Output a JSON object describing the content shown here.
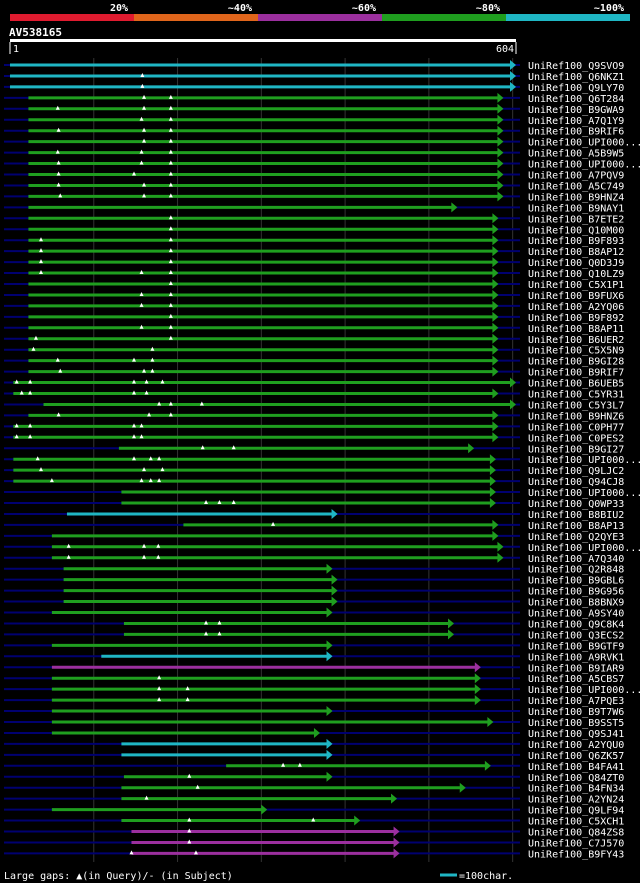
{
  "scale": {
    "labels": [
      "20%",
      "~40%",
      "~60%",
      "~80%",
      "~100%"
    ],
    "colors": [
      "#e01b2f",
      "#e0651b",
      "#9b2f9e",
      "#1f9e1f",
      "#1fb6c4"
    ]
  },
  "query": {
    "name": "AV538165",
    "start": "1",
    "end": "604",
    "length": 604
  },
  "legend": {
    "gaps": "Large gaps: ▲(in Query)/- (in Subject)",
    "unit": "=100char."
  },
  "colors": {
    "cyan": "#1fb6c4",
    "green": "#1f9e1f",
    "purple": "#9b2f9e",
    "background": "#000000",
    "track": "#000070",
    "text": "#ffffff"
  },
  "hits": [
    {
      "label": "UniRef100_Q9SVO9",
      "s": 0,
      "e": 604,
      "c": "cyan",
      "m": [],
      "a": []
    },
    {
      "label": "UniRef100_Q6NKZ1",
      "s": 0,
      "e": 604,
      "c": "cyan",
      "m": [],
      "a": [
        158
      ]
    },
    {
      "label": "UniRef100_Q9LY70",
      "s": 0,
      "e": 604,
      "c": "cyan",
      "m": [],
      "a": [
        158
      ]
    },
    {
      "label": "UniRef100_Q6T284",
      "s": 22,
      "e": 589,
      "c": "green",
      "m": [],
      "a": [
        160,
        192
      ]
    },
    {
      "label": "UniRef100_B9GWA9",
      "s": 22,
      "e": 589,
      "c": "green",
      "m": [],
      "a": [
        57,
        160,
        192
      ]
    },
    {
      "label": "UniRef100_A7Q1Y9",
      "s": 22,
      "e": 589,
      "c": "green",
      "m": [],
      "a": [
        157,
        192
      ]
    },
    {
      "label": "UniRef100_B9RIF6",
      "s": 22,
      "e": 589,
      "c": "green",
      "m": [],
      "a": [
        58,
        160,
        192
      ]
    },
    {
      "label": "UniRef100_UPI000...",
      "s": 22,
      "e": 589,
      "c": "green",
      "m": [],
      "a": [
        160,
        192
      ]
    },
    {
      "label": "UniRef100_A5B9W5",
      "s": 22,
      "e": 589,
      "c": "green",
      "m": [],
      "a": [
        57,
        157,
        192
      ]
    },
    {
      "label": "UniRef100_UPI000...",
      "s": 22,
      "e": 589,
      "c": "green",
      "m": [],
      "a": [
        58,
        157,
        192
      ]
    },
    {
      "label": "UniRef100_A7PQV9",
      "s": 22,
      "e": 589,
      "c": "green",
      "m": [],
      "a": [
        58,
        148,
        192
      ]
    },
    {
      "label": "UniRef100_A5C749",
      "s": 22,
      "e": 589,
      "c": "green",
      "m": [],
      "a": [
        58,
        160,
        192
      ]
    },
    {
      "label": "UniRef100_B9HNZ4",
      "s": 22,
      "e": 589,
      "c": "green",
      "m": [],
      "a": [
        60,
        160,
        192
      ]
    },
    {
      "label": "UniRef100_B9NAY1",
      "s": 22,
      "e": 534,
      "c": "green",
      "m": [],
      "a": []
    },
    {
      "label": "UniRef100_B7ETE2",
      "s": 22,
      "e": 583,
      "c": "green",
      "m": [],
      "a": [
        192
      ]
    },
    {
      "label": "UniRef100_Q10M00",
      "s": 22,
      "e": 583,
      "c": "green",
      "m": [],
      "a": [
        192
      ]
    },
    {
      "label": "UniRef100_B9F893",
      "s": 22,
      "e": 583,
      "c": "green",
      "m": [],
      "a": [
        37,
        192
      ]
    },
    {
      "label": "UniRef100_B8AP12",
      "s": 22,
      "e": 583,
      "c": "green",
      "m": [],
      "a": [
        37,
        192
      ]
    },
    {
      "label": "UniRef100_Q0D3J9",
      "s": 22,
      "e": 583,
      "c": "green",
      "m": [],
      "a": [
        37,
        192
      ]
    },
    {
      "label": "UniRef100_Q10LZ9",
      "s": 22,
      "e": 583,
      "c": "green",
      "m": [],
      "a": [
        37,
        157,
        192
      ]
    },
    {
      "label": "UniRef100_C5X1P1",
      "s": 22,
      "e": 583,
      "c": "green",
      "m": [],
      "a": [
        192
      ]
    },
    {
      "label": "UniRef100_B9FUX6",
      "s": 22,
      "e": 583,
      "c": "green",
      "m": [],
      "a": [
        157,
        192
      ]
    },
    {
      "label": "UniRef100_A2YQ06",
      "s": 22,
      "e": 583,
      "c": "green",
      "m": [],
      "a": [
        157,
        192
      ]
    },
    {
      "label": "UniRef100_B9F892",
      "s": 22,
      "e": 583,
      "c": "green",
      "m": [],
      "a": [
        192
      ]
    },
    {
      "label": "UniRef100_B8AP11",
      "s": 22,
      "e": 583,
      "c": "green",
      "m": [],
      "a": [
        157,
        192
      ]
    },
    {
      "label": "UniRef100_B6UER2",
      "s": 22,
      "e": 583,
      "c": "green",
      "m": [],
      "a": [
        31,
        192
      ]
    },
    {
      "label": "UniRef100_C5X5N9",
      "s": 22,
      "e": 583,
      "c": "green",
      "m": [],
      "a": [
        28,
        170
      ]
    },
    {
      "label": "UniRef100_B9GI28",
      "s": 22,
      "e": 583,
      "c": "green",
      "m": [],
      "a": [
        57,
        148,
        170
      ]
    },
    {
      "label": "UniRef100_B9RIF7",
      "s": 22,
      "e": 583,
      "c": "green",
      "m": [],
      "a": [
        60,
        160,
        170
      ]
    },
    {
      "label": "UniRef100_B6UEB5",
      "s": 4,
      "e": 604,
      "c": "green",
      "m": [],
      "a": [
        8,
        24,
        148,
        163,
        182
      ]
    },
    {
      "label": "UniRef100_C5YR31",
      "s": 4,
      "e": 583,
      "c": "green",
      "m": [],
      "a": [
        14,
        24,
        148,
        163
      ]
    },
    {
      "label": "UniRef100_C5Y3L7",
      "s": 40,
      "e": 604,
      "c": "green",
      "m": [],
      "a": [
        178,
        192,
        229
      ]
    },
    {
      "label": "UniRef100_B9HNZ6",
      "s": 22,
      "e": 583,
      "c": "green",
      "m": [],
      "a": [
        58,
        166,
        192
      ]
    },
    {
      "label": "UniRef100_C0PH77",
      "s": 4,
      "e": 583,
      "c": "green",
      "m": [],
      "a": [
        8,
        24,
        148,
        157
      ]
    },
    {
      "label": "UniRef100_C0PES2",
      "s": 4,
      "e": 583,
      "c": "green",
      "m": [],
      "a": [
        8,
        24,
        148,
        157
      ]
    },
    {
      "label": "UniRef100_B9GI27",
      "s": 130,
      "e": 554,
      "c": "green",
      "m": [],
      "a": [
        230,
        267
      ]
    },
    {
      "label": "UniRef100_UPI000...",
      "s": 4,
      "e": 580,
      "c": "green",
      "m": [],
      "a": [
        33,
        148,
        168,
        178
      ]
    },
    {
      "label": "UniRef100_Q9LJC2",
      "s": 4,
      "e": 580,
      "c": "green",
      "m": [],
      "a": [
        37,
        160,
        182
      ]
    },
    {
      "label": "UniRef100_Q94CJ8",
      "s": 4,
      "e": 580,
      "c": "green",
      "m": [],
      "a": [
        50,
        157,
        168,
        178
      ]
    },
    {
      "label": "UniRef100_UPI000...",
      "s": 133,
      "e": 580,
      "c": "green",
      "m": [],
      "a": []
    },
    {
      "label": "UniRef100_Q0WP33",
      "s": 133,
      "e": 580,
      "c": "green",
      "m": [],
      "a": [
        234,
        250,
        267
      ]
    },
    {
      "label": "UniRef100_B8BIU2",
      "s": 68,
      "e": 391,
      "c": "cyan",
      "m": [],
      "a": []
    },
    {
      "label": "UniRef100_B8AP13",
      "s": 207,
      "e": 583,
      "c": "green",
      "m": [],
      "a": [
        314
      ]
    },
    {
      "label": "UniRef100_Q2QYE3",
      "s": 50,
      "e": 583,
      "c": "green",
      "m": [],
      "a": []
    },
    {
      "label": "UniRef100_UPI000...",
      "s": 50,
      "e": 589,
      "c": "green",
      "m": [],
      "a": [
        70,
        160,
        177
      ]
    },
    {
      "label": "UniRef100_A7Q340",
      "s": 50,
      "e": 589,
      "c": "green",
      "m": [],
      "a": [
        70,
        160,
        177
      ]
    },
    {
      "label": "UniRef100_Q2R848",
      "s": 64,
      "e": 385,
      "c": "green",
      "m": [],
      "a": []
    },
    {
      "label": "UniRef100_B9GBL6",
      "s": 64,
      "e": 391,
      "c": "green",
      "m": [],
      "a": []
    },
    {
      "label": "UniRef100_B9G956",
      "s": 64,
      "e": 391,
      "c": "green",
      "m": [],
      "a": []
    },
    {
      "label": "UniRef100_B8BNX9",
      "s": 64,
      "e": 391,
      "c": "green",
      "m": [],
      "a": []
    },
    {
      "label": "UniRef100_A9SY40",
      "s": 50,
      "e": 385,
      "c": "green",
      "m": [],
      "a": []
    },
    {
      "label": "UniRef100_Q9C8K4",
      "s": 136,
      "e": 530,
      "c": "green",
      "m": [],
      "a": [
        234,
        250
      ]
    },
    {
      "label": "UniRef100_Q3ECS2",
      "s": 136,
      "e": 530,
      "c": "green",
      "m": [],
      "a": [
        234,
        250
      ]
    },
    {
      "label": "UniRef100_B9GTF9",
      "s": 50,
      "e": 385,
      "c": "green",
      "m": [],
      "a": []
    },
    {
      "label": "UniRef100_A9RVK1",
      "s": 109,
      "e": 385,
      "c": "cyan",
      "m": [],
      "a": []
    },
    {
      "label": "UniRef100_B9IAR9",
      "s": 50,
      "e": 562,
      "c": "purple",
      "m": [],
      "a": []
    },
    {
      "label": "UniRef100_A5CBS7",
      "s": 50,
      "e": 562,
      "c": "green",
      "m": [],
      "a": [
        178
      ]
    },
    {
      "label": "UniRef100_UPI000...",
      "s": 50,
      "e": 562,
      "c": "green",
      "m": [],
      "a": [
        178,
        212
      ]
    },
    {
      "label": "UniRef100_A7PQE3",
      "s": 50,
      "e": 562,
      "c": "green",
      "m": [],
      "a": [
        178,
        212
      ]
    },
    {
      "label": "UniRef100_B9T7W6",
      "s": 50,
      "e": 385,
      "c": "green",
      "m": [],
      "a": []
    },
    {
      "label": "UniRef100_B9SST5",
      "s": 50,
      "e": 577,
      "c": "green",
      "m": [],
      "a": []
    },
    {
      "label": "UniRef100_Q9SJ41",
      "s": 50,
      "e": 370,
      "c": "green",
      "m": [],
      "a": []
    },
    {
      "label": "UniRef100_A2YQU0",
      "s": 133,
      "e": 385,
      "c": "cyan",
      "m": [],
      "a": []
    },
    {
      "label": "UniRef100_Q6ZK57",
      "s": 133,
      "e": 385,
      "c": "cyan",
      "m": [],
      "a": []
    },
    {
      "label": "UniRef100_B4FA41",
      "s": 258,
      "e": 574,
      "c": "green",
      "m": [],
      "a": [
        326,
        346
      ]
    },
    {
      "label": "UniRef100_Q84ZT0",
      "s": 136,
      "e": 385,
      "c": "green",
      "m": [],
      "a": [
        214
      ]
    },
    {
      "label": "UniRef100_B4FN34",
      "s": 133,
      "e": 544,
      "c": "green",
      "m": [],
      "a": [
        224
      ]
    },
    {
      "label": "UniRef100_A2YN24",
      "s": 133,
      "e": 462,
      "c": "green",
      "m": [],
      "a": [
        163
      ]
    },
    {
      "label": "UniRef100_Q9LF94",
      "s": 50,
      "e": 307,
      "c": "green",
      "m": [],
      "a": []
    },
    {
      "label": "UniRef100_C5XCH1",
      "s": 133,
      "e": 418,
      "c": "green",
      "m": [],
      "a": [
        214,
        362
      ]
    },
    {
      "label": "UniRef100_Q84ZS8",
      "s": 145,
      "e": 465,
      "c": "purple",
      "m": [],
      "a": [
        214
      ]
    },
    {
      "label": "UniRef100_C7J570",
      "s": 145,
      "e": 465,
      "c": "purple",
      "m": [],
      "a": [
        214
      ]
    },
    {
      "label": "UniRef100_B9FY43",
      "s": 145,
      "e": 465,
      "c": "purple",
      "m": [],
      "a": [
        145,
        222
      ]
    }
  ]
}
